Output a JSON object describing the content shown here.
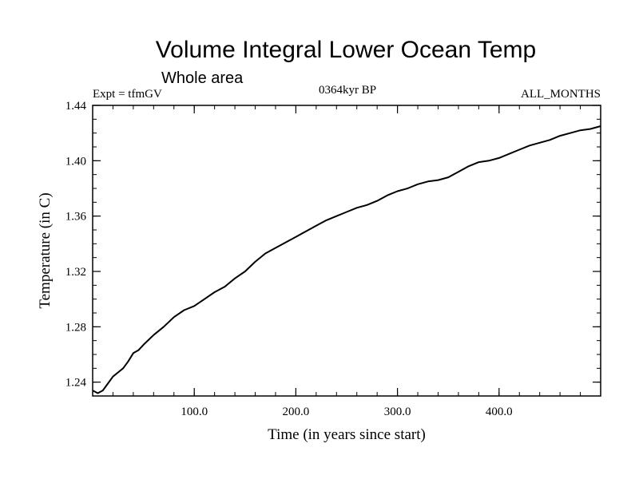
{
  "header": {
    "subtitle": "Whole area",
    "experiment": "Expt = tfmGV",
    "period": "0364kyr BP",
    "months": "ALL_MONTHS"
  },
  "chart_data": {
    "type": "line",
    "title": "Volume Integral Lower Ocean Temp",
    "xlabel": "Time (in years since start)",
    "ylabel": "Temperature (in C)",
    "xlim": [
      0,
      500
    ],
    "ylim": [
      1.23,
      1.44
    ],
    "x_ticks": [
      100,
      200,
      300,
      400
    ],
    "x_tick_labels": [
      "100.0",
      "200.0",
      "300.0",
      "400.0"
    ],
    "x_minor_step": 20,
    "y_ticks": [
      1.24,
      1.28,
      1.32,
      1.36,
      1.4,
      1.44
    ],
    "y_tick_labels": [
      "1.24",
      "1.28",
      "1.32",
      "1.36",
      "1.40",
      "1.44"
    ],
    "y_minor_step": 0.01,
    "grid": false,
    "legend": false,
    "series_color": "#000000",
    "x": [
      0,
      5,
      10,
      15,
      20,
      25,
      30,
      35,
      40,
      45,
      50,
      60,
      70,
      80,
      90,
      100,
      110,
      120,
      130,
      140,
      150,
      160,
      170,
      180,
      190,
      200,
      210,
      220,
      230,
      240,
      250,
      260,
      270,
      280,
      290,
      300,
      310,
      320,
      330,
      340,
      350,
      360,
      370,
      380,
      390,
      400,
      410,
      420,
      430,
      440,
      450,
      460,
      470,
      480,
      490,
      500
    ],
    "y": [
      1.234,
      1.232,
      1.234,
      1.239,
      1.244,
      1.247,
      1.25,
      1.255,
      1.261,
      1.263,
      1.267,
      1.274,
      1.28,
      1.287,
      1.292,
      1.295,
      1.3,
      1.305,
      1.309,
      1.315,
      1.32,
      1.327,
      1.333,
      1.337,
      1.341,
      1.345,
      1.349,
      1.353,
      1.357,
      1.36,
      1.363,
      1.366,
      1.368,
      1.371,
      1.375,
      1.378,
      1.38,
      1.383,
      1.385,
      1.386,
      1.388,
      1.392,
      1.396,
      1.399,
      1.4,
      1.402,
      1.405,
      1.408,
      1.411,
      1.413,
      1.415,
      1.418,
      1.42,
      1.422,
      1.423,
      1.425
    ]
  }
}
